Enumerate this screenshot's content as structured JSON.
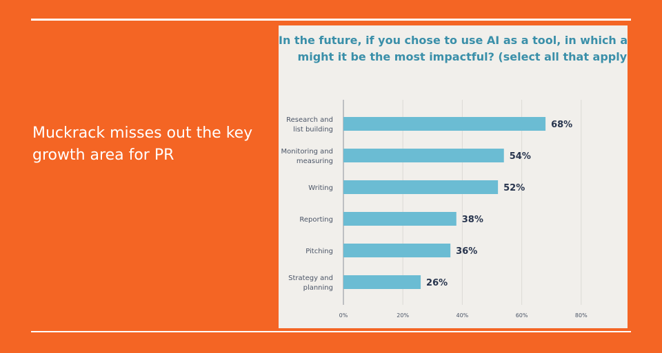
{
  "slide": {
    "text": "Muckrack misses out the key growth area for PR",
    "background": "#f46524"
  },
  "chart_data": {
    "type": "bar",
    "orientation": "horizontal",
    "title_lines": [
      "In the future, if you chose to use AI as a tool, in which area(s)",
      "might it be the most impactful? (select all that apply)"
    ],
    "categories": [
      [
        "Research and",
        "list building"
      ],
      [
        "Monitoring and",
        "measuring"
      ],
      [
        "Writing"
      ],
      [
        "Reporting"
      ],
      [
        "Pitching"
      ],
      [
        "Strategy and",
        "planning"
      ]
    ],
    "values": [
      68,
      54,
      52,
      38,
      36,
      26
    ],
    "value_labels": [
      "68%",
      "54%",
      "52%",
      "38%",
      "36%",
      "26%"
    ],
    "x_ticks": [
      0,
      20,
      40,
      60,
      80
    ],
    "x_tick_labels": [
      "0%",
      "20%",
      "40%",
      "60%",
      "80%"
    ],
    "xlim": [
      0,
      100
    ],
    "grid": true,
    "bar_color": "#6bbcd3",
    "title_color": "#3a8fa9",
    "panel_background": "#f1efeb"
  }
}
